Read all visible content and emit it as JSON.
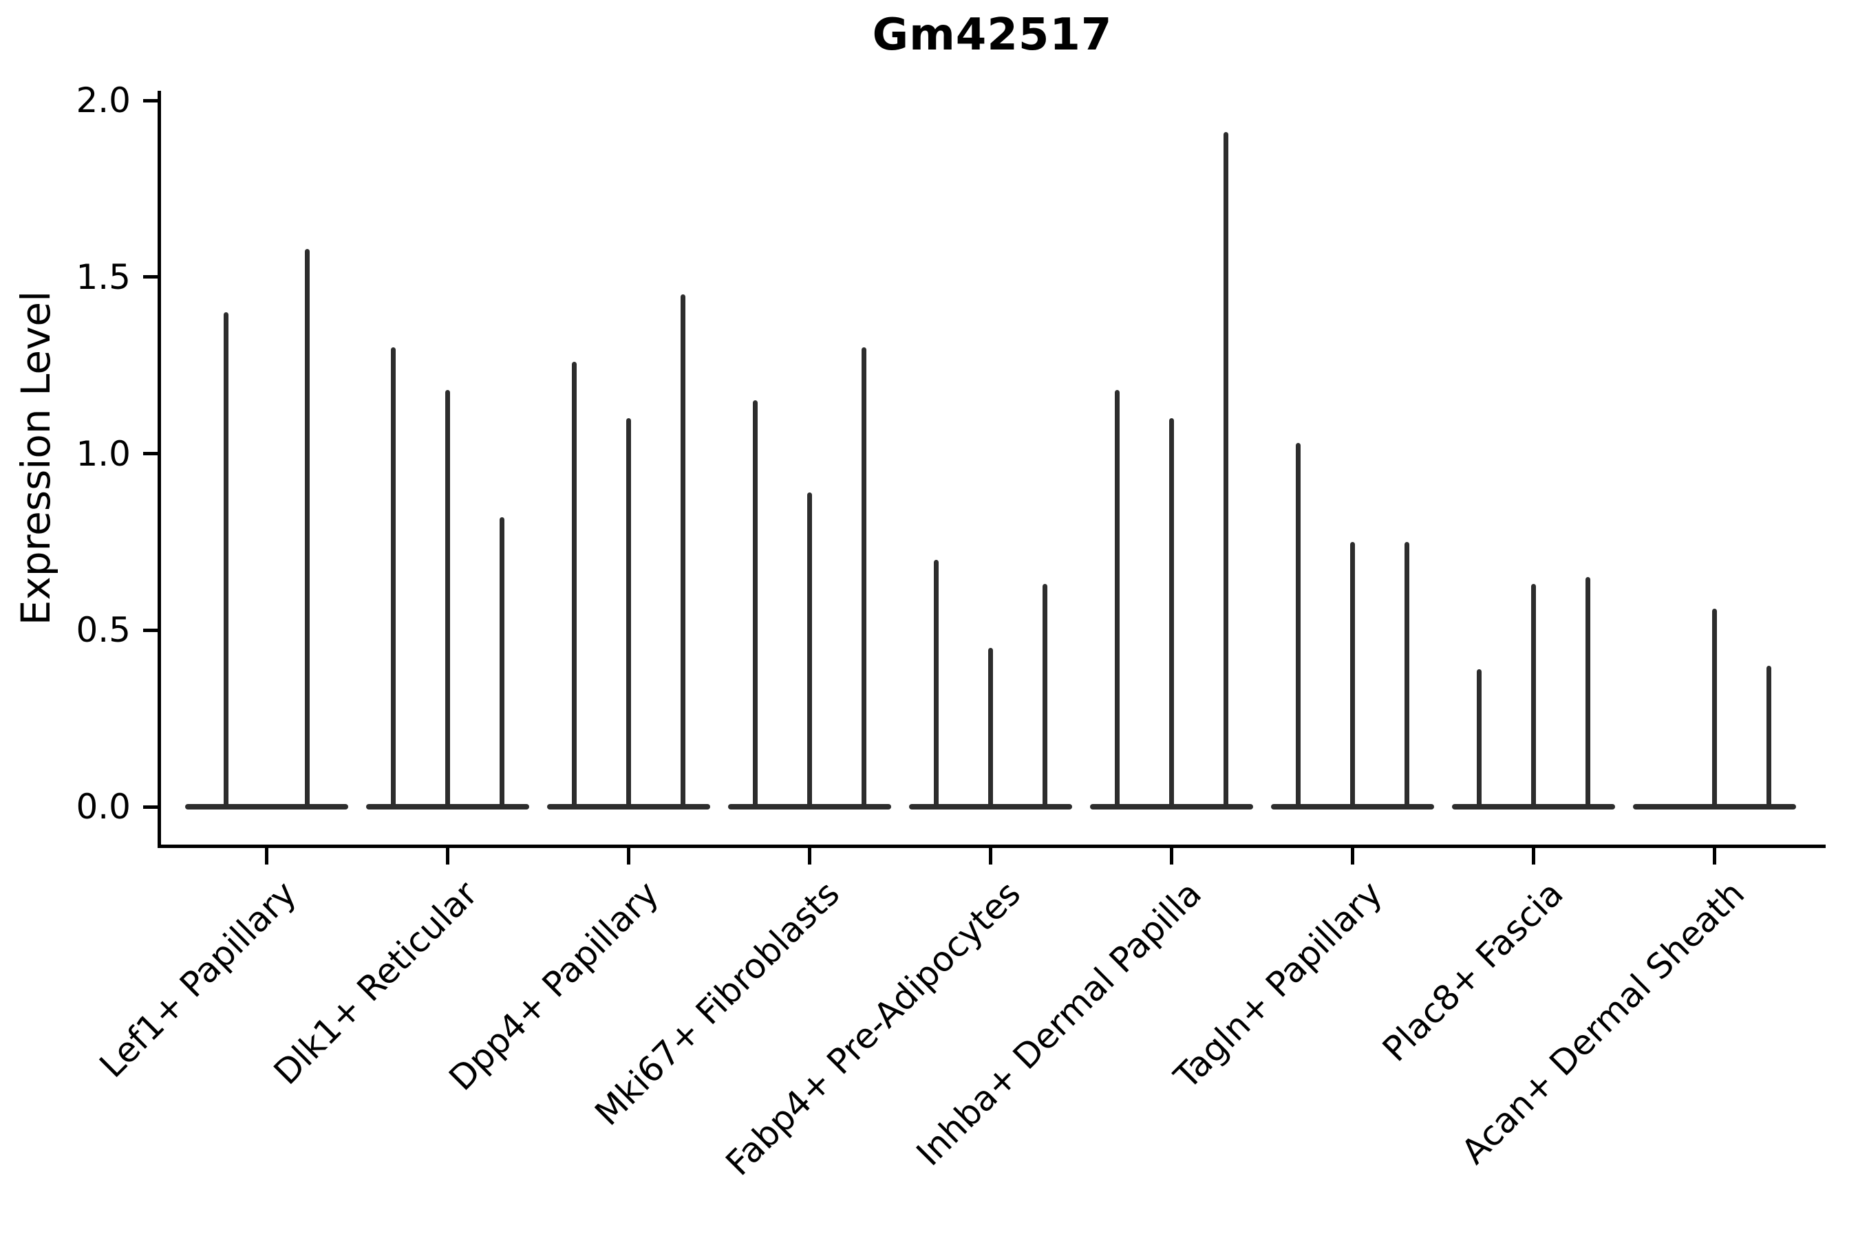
{
  "title": "Gm42517",
  "ylabel": "Expression Level",
  "chart_data": {
    "type": "violin",
    "title": "Gm42517",
    "xlabel": "",
    "ylabel": "Expression Level",
    "ylim": [
      0.0,
      2.0
    ],
    "yticks": [
      0.0,
      0.5,
      1.0,
      1.5,
      2.0
    ],
    "ytick_labels": [
      "0.0",
      "0.5",
      "1.0",
      "1.5",
      "2.0"
    ],
    "grid": false,
    "legend_position": "none",
    "categories": [
      "Lef1+ Papillary",
      "Dlk1+ Reticular",
      "Dpp4+ Papillary",
      "Mki67+ Fibroblasts",
      "Fabp4+ Pre-Adipocytes",
      "Inhba+ Dermal Papilla",
      "Tagln+ Papillary",
      "Plac8+ Fascia",
      "Acan+ Dermal Sheath"
    ],
    "description": "Violin plot of Gm42517 expression; violins collapse to thin spikes whose tops mark the maximum expression per sub-violin, with flattened bodies along 0.",
    "groups": [
      {
        "label": "Lef1+ Papillary",
        "violin_max_values": [
          1.4,
          1.58
        ]
      },
      {
        "label": "Dlk1+ Reticular",
        "violin_max_values": [
          1.3,
          1.18,
          0.82
        ]
      },
      {
        "label": "Dpp4+ Papillary",
        "violin_max_values": [
          1.26,
          1.1,
          1.45
        ]
      },
      {
        "label": "Mki67+ Fibroblasts",
        "violin_max_values": [
          1.15,
          0.89,
          1.3
        ]
      },
      {
        "label": "Fabp4+ Pre-Adipocytes",
        "violin_max_values": [
          0.7,
          0.45,
          0.63
        ]
      },
      {
        "label": "Inhba+ Dermal Papilla",
        "violin_max_values": [
          1.18,
          1.1,
          1.91
        ]
      },
      {
        "label": "Tagln+ Papillary",
        "violin_max_values": [
          1.03,
          0.75,
          0.75
        ]
      },
      {
        "label": "Plac8+ Fascia",
        "violin_max_values": [
          0.39,
          0.63,
          0.65
        ]
      },
      {
        "label": "Acan+ Dermal Sheath",
        "violin_max_values": [
          0.0,
          0.56,
          0.4
        ]
      }
    ],
    "colors": {
      "spike": "#2d2d2d",
      "axis": "#000000",
      "text": "#000000",
      "background": "#ffffff"
    }
  }
}
